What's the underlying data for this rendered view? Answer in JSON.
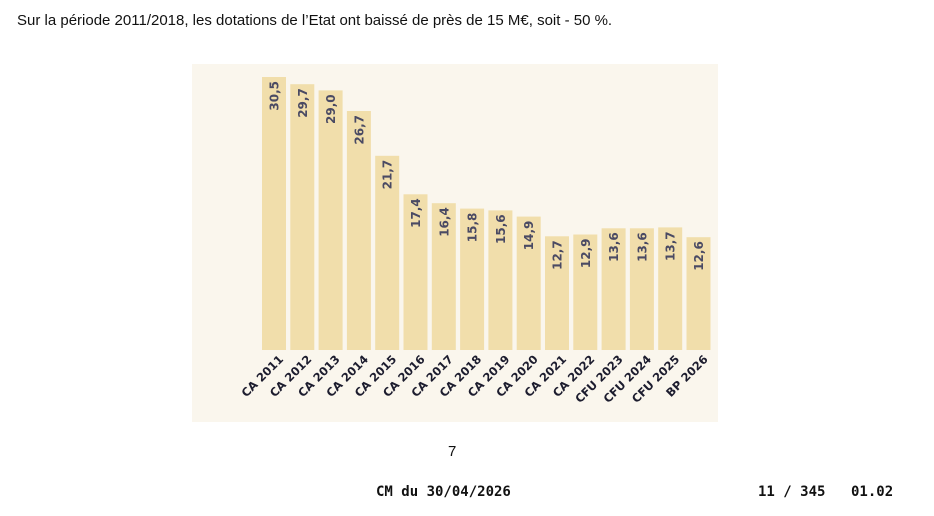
{
  "document": {
    "intro_text": "Sur la période 2011/2018, les dotations de l’Etat ont baissé de près de 15 M€, soit - 50 %.",
    "page_number": "7"
  },
  "footer": {
    "meeting": "CM du 30/04/2026",
    "pages": "11 / 345",
    "ref": "01.02"
  },
  "colors": {
    "bar": "#f1deab",
    "panel": "#faf6ed",
    "value_label": "#4a4a63",
    "category_label": "#1c1c2e"
  },
  "chart_data": {
    "type": "bar",
    "title": "",
    "xlabel": "",
    "ylabel": "",
    "categories": [
      "CA 2011",
      "CA 2012",
      "CA 2013",
      "CA 2014",
      "CA 2015",
      "CA 2016",
      "CA 2017",
      "CA 2018",
      "CA 2019",
      "CA 2020",
      "CA 2021",
      "CA 2022",
      "CFU 2023",
      "CFU 2024",
      "CFU 2025",
      "BP 2026"
    ],
    "values": [
      30.5,
      29.7,
      29.0,
      26.7,
      21.7,
      17.4,
      16.4,
      15.8,
      15.6,
      14.9,
      12.7,
      12.9,
      13.6,
      13.6,
      13.7,
      12.6
    ],
    "value_labels": [
      "30,5",
      "29,7",
      "29,0",
      "26,7",
      "21,7",
      "17,4",
      "16,4",
      "15,8",
      "15,6",
      "14,9",
      "12,7",
      "12,9",
      "13,6",
      "13,6",
      "13,7",
      "12,6"
    ],
    "ylim": [
      0,
      31
    ],
    "grid": false,
    "legend": "none"
  }
}
